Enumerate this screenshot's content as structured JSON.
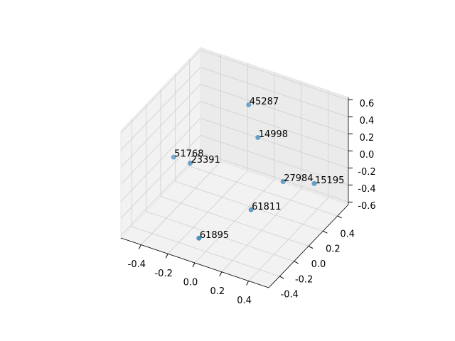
{
  "chart_data": {
    "type": "scatter3d",
    "x": [
      -0.03,
      0.06,
      -0.4,
      -0.32,
      0.21,
      0.35,
      0.09,
      -0.05
    ],
    "y": [
      0.25,
      0.21,
      -0.1,
      -0.02,
      0.28,
      0.45,
      0.06,
      -0.4
    ],
    "z": [
      0.5,
      0.2,
      0.0,
      -0.1,
      -0.3,
      -0.4,
      -0.5,
      -0.5
    ],
    "labels": [
      "45287",
      "14998",
      "51768",
      "23391",
      "27984",
      "15195",
      "61811",
      "61895"
    ],
    "color": "#1f77b4",
    "xlim": [
      -0.55,
      0.55
    ],
    "ylim": [
      -0.55,
      0.55
    ],
    "zlim": [
      -0.63,
      0.63
    ],
    "xticks": [
      -0.4,
      -0.2,
      {
        "value": 0,
        "label": "0.0"
      },
      0.2,
      0.4
    ],
    "yticks": [
      -0.4,
      -0.2,
      {
        "value": 0,
        "label": "0.0"
      },
      0.2,
      0.4
    ],
    "zticks": [
      -0.6,
      -0.4,
      -0.2,
      {
        "value": 0,
        "label": "0.0"
      },
      0.2,
      0.4,
      0.6
    ],
    "grid": true
  }
}
